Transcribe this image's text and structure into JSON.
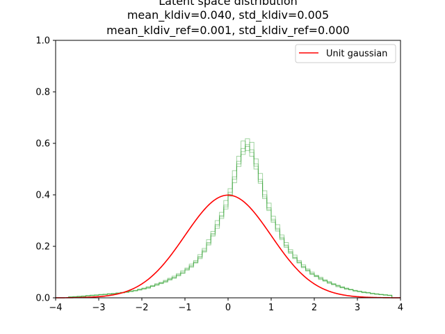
{
  "chart_data": {
    "type": "line",
    "title_lines": [
      "Latent space distribution",
      "mean_kldiv=0.040, std_kldiv=0.005",
      "mean_kldiv_ref=0.001, std_kldiv_ref=0.000"
    ],
    "xlim": [
      -4,
      4
    ],
    "ylim": [
      0,
      1.0
    ],
    "x_ticks": [
      "−4",
      "−3",
      "−2",
      "−1",
      "0",
      "1",
      "2",
      "3",
      "4"
    ],
    "y_ticks": [
      "0.0",
      "0.2",
      "0.4",
      "0.6",
      "0.8",
      "1.0"
    ],
    "legend": {
      "placement": "top-right",
      "entries": [
        "Unit gaussian"
      ]
    },
    "colors": {
      "gaussian": "#ff0000",
      "histogram": "#2ca02c"
    },
    "reference_curve": {
      "name": "Unit gaussian",
      "type": "normal-pdf",
      "mean": 0,
      "std": 1
    },
    "histograms": {
      "bin_width": 0.1,
      "x_start": -3.7,
      "series": [
        {
          "values": [
            0.003,
            0.004,
            0.005,
            0.006,
            0.008,
            0.009,
            0.01,
            0.012,
            0.013,
            0.015,
            0.016,
            0.018,
            0.02,
            0.022,
            0.025,
            0.028,
            0.032,
            0.036,
            0.041,
            0.046,
            0.052,
            0.058,
            0.065,
            0.073,
            0.08,
            0.09,
            0.1,
            0.112,
            0.125,
            0.14,
            0.16,
            0.185,
            0.215,
            0.25,
            0.285,
            0.32,
            0.36,
            0.41,
            0.47,
            0.53,
            0.58,
            0.595,
            0.575,
            0.52,
            0.46,
            0.4,
            0.35,
            0.305,
            0.27,
            0.235,
            0.205,
            0.18,
            0.158,
            0.14,
            0.122,
            0.108,
            0.095,
            0.085,
            0.076,
            0.068,
            0.06,
            0.053,
            0.047,
            0.041,
            0.036,
            0.032,
            0.028,
            0.025,
            0.022,
            0.02,
            0.017,
            0.015,
            0.013,
            0.011,
            0.01
          ]
        },
        {
          "values": [
            0.002,
            0.003,
            0.005,
            0.007,
            0.007,
            0.01,
            0.011,
            0.011,
            0.014,
            0.016,
            0.015,
            0.019,
            0.021,
            0.021,
            0.027,
            0.027,
            0.034,
            0.034,
            0.043,
            0.044,
            0.055,
            0.056,
            0.068,
            0.07,
            0.084,
            0.086,
            0.105,
            0.108,
            0.131,
            0.135,
            0.168,
            0.178,
            0.226,
            0.24,
            0.3,
            0.308,
            0.378,
            0.395,
            0.494,
            0.51,
            0.609,
            0.572,
            0.604,
            0.5,
            0.483,
            0.385,
            0.368,
            0.293,
            0.284,
            0.226,
            0.215,
            0.173,
            0.166,
            0.135,
            0.128,
            0.104,
            0.1,
            0.082,
            0.08,
            0.065,
            0.063,
            0.051,
            0.049,
            0.039,
            0.038,
            0.031,
            0.029,
            0.024,
            0.023,
            0.019,
            0.018,
            0.014,
            0.014,
            0.011,
            0.01
          ]
        },
        {
          "values": [
            0.003,
            0.005,
            0.004,
            0.006,
            0.009,
            0.008,
            0.011,
            0.013,
            0.012,
            0.016,
            0.017,
            0.017,
            0.021,
            0.023,
            0.024,
            0.029,
            0.03,
            0.038,
            0.039,
            0.048,
            0.05,
            0.06,
            0.062,
            0.076,
            0.077,
            0.094,
            0.095,
            0.116,
            0.119,
            0.145,
            0.152,
            0.192,
            0.205,
            0.258,
            0.27,
            0.332,
            0.345,
            0.424,
            0.447,
            0.55,
            0.557,
            0.618,
            0.55,
            0.54,
            0.445,
            0.416,
            0.339,
            0.317,
            0.259,
            0.244,
            0.196,
            0.187,
            0.152,
            0.145,
            0.117,
            0.112,
            0.091,
            0.088,
            0.071,
            0.07,
            0.056,
            0.055,
            0.043,
            0.043,
            0.033,
            0.033,
            0.026,
            0.026,
            0.02,
            0.021,
            0.016,
            0.016,
            0.012,
            0.012,
            0.009
          ]
        },
        {
          "values": [
            0.004,
            0.003,
            0.006,
            0.005,
            0.008,
            0.01,
            0.009,
            0.013,
            0.014,
            0.014,
            0.017,
            0.019,
            0.019,
            0.023,
            0.026,
            0.027,
            0.031,
            0.035,
            0.037,
            0.045,
            0.049,
            0.055,
            0.061,
            0.07,
            0.076,
            0.086,
            0.096,
            0.108,
            0.122,
            0.137,
            0.157,
            0.18,
            0.21,
            0.245,
            0.279,
            0.315,
            0.353,
            0.402,
            0.461,
            0.52,
            0.568,
            0.588,
            0.565,
            0.511,
            0.452,
            0.392,
            0.344,
            0.299,
            0.265,
            0.231,
            0.201,
            0.176,
            0.155,
            0.137,
            0.12,
            0.106,
            0.093,
            0.083,
            0.074,
            0.066,
            0.059,
            0.052,
            0.046,
            0.04,
            0.035,
            0.031,
            0.027,
            0.024,
            0.021,
            0.019,
            0.016,
            0.014,
            0.012,
            0.01,
            0.009
          ]
        }
      ]
    }
  }
}
